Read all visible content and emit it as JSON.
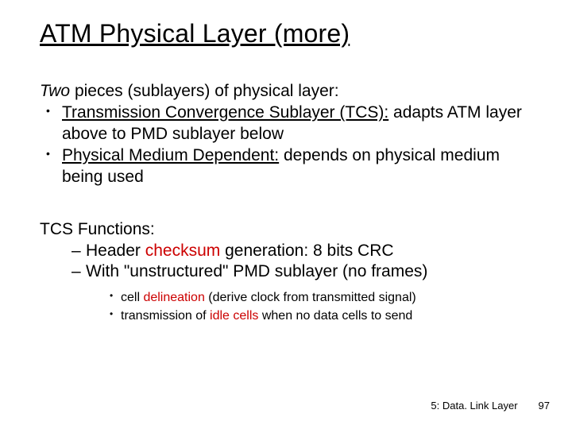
{
  "title": "ATM Physical Layer (more)",
  "intro_italic": "Two",
  "intro_rest": " pieces (sublayers) of physical layer:",
  "bullets": [
    {
      "u": "Transmission Convergence Sublayer (TCS):",
      "rest": " adapts ATM layer above to PMD sublayer below"
    },
    {
      "u": "Physical Medium Dependent:",
      "rest": " depends on physical medium being used"
    }
  ],
  "subhead": "TCS Functions:",
  "dashes": [
    {
      "pre": "Header ",
      "red": "checksum",
      "post": " generation: 8 bits CRC"
    },
    {
      "pre": "With \"unstructured\" PMD sublayer (no frames)",
      "red": "",
      "post": ""
    }
  ],
  "subs": [
    {
      "pre": "cell ",
      "red": "delineation",
      "post": " (derive clock from transmitted signal)"
    },
    {
      "pre": "transmission of ",
      "red": "idle cells",
      "post": " when no data cells to send"
    }
  ],
  "footer_chapter": "5: Data. Link Layer",
  "footer_page": "97",
  "colors": {
    "red": "#cc0000",
    "text": "#000000",
    "bg": "#ffffff"
  }
}
